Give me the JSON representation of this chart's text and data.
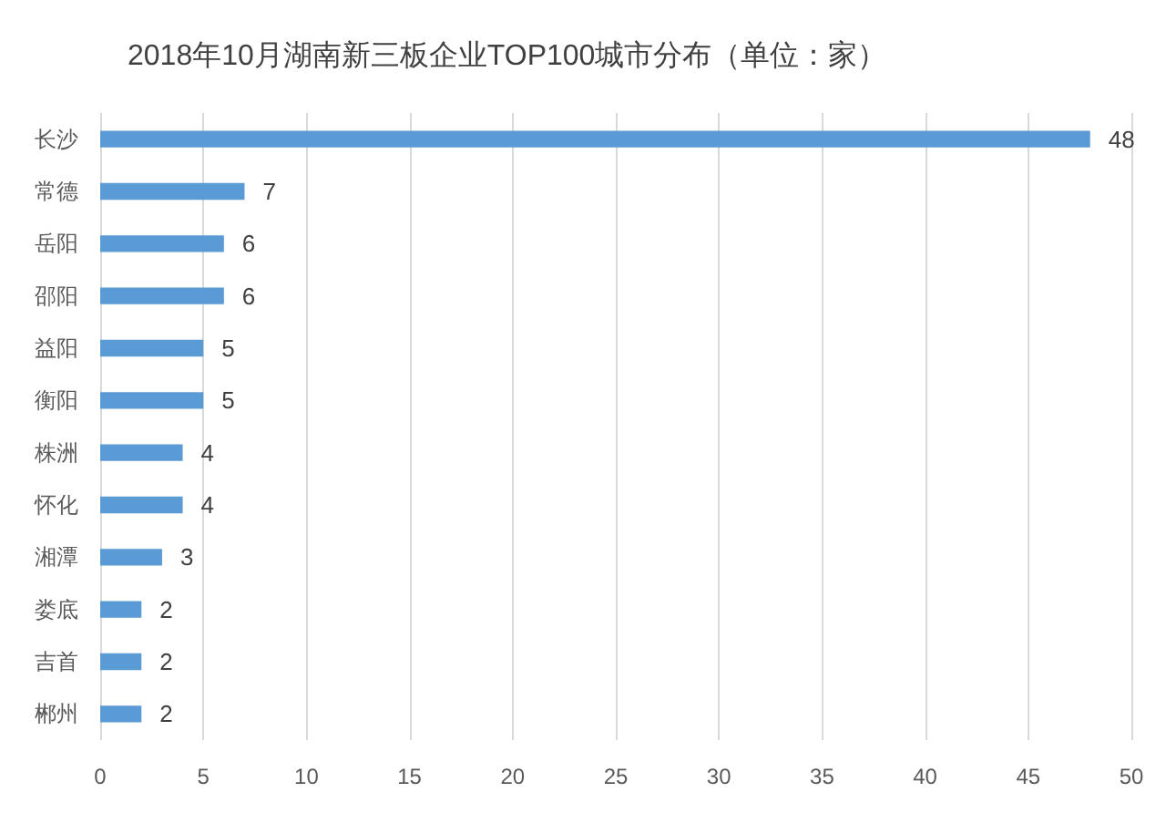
{
  "chart_data": {
    "type": "bar",
    "orientation": "horizontal",
    "title": "2018年10月湖南新三板企业TOP100城市分布（单位：家）",
    "categories": [
      "长沙",
      "常德",
      "岳阳",
      "邵阳",
      "益阳",
      "衡阳",
      "株洲",
      "怀化",
      "湘潭",
      "娄底",
      "吉首",
      "郴州"
    ],
    "values": [
      48,
      7,
      6,
      6,
      5,
      5,
      4,
      4,
      3,
      2,
      2,
      2
    ],
    "color": "#5b9bd5",
    "xlim": [
      0,
      50
    ],
    "xticks": [
      0,
      5,
      10,
      15,
      20,
      25,
      30,
      35,
      40,
      45,
      50
    ],
    "grid": "x",
    "data_labels": true
  }
}
